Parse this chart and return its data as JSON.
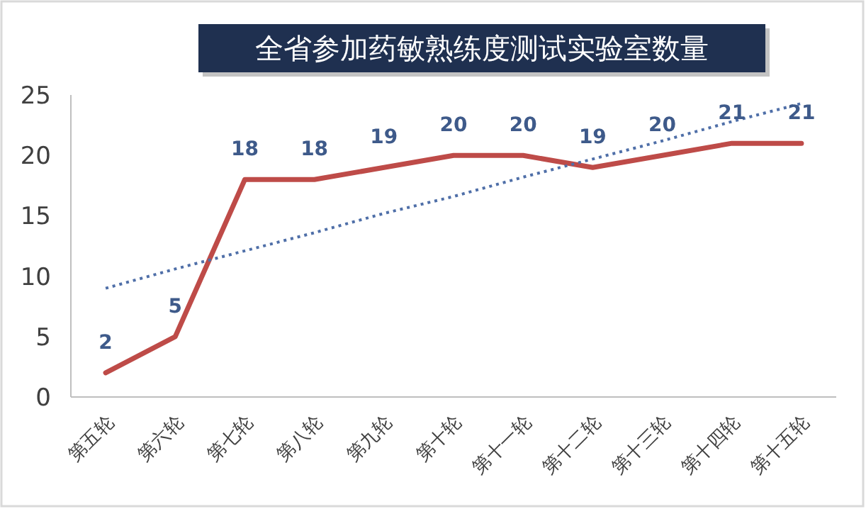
{
  "chart_data": {
    "type": "line",
    "title": "全省参加药敏熟练度测试实验室数量",
    "categories": [
      "第五轮",
      "第六轮",
      "第七轮",
      "第八轮",
      "第九轮",
      "第十轮",
      "第十一轮",
      "第十二轮",
      "第十三轮",
      "第十四轮",
      "第十五轮"
    ],
    "ylim": [
      0,
      25
    ],
    "yticks": [
      0,
      5,
      10,
      15,
      20,
      25
    ],
    "grid": false,
    "series": [
      {
        "color": "#be4b48",
        "line_style": "solid",
        "values": [
          2,
          5,
          18,
          18,
          19,
          20,
          20,
          19,
          20,
          21,
          21
        ],
        "value_labels": [
          "2",
          "5",
          "18",
          "18",
          "19",
          "20",
          "20",
          "19",
          "20",
          "21",
          "21"
        ]
      },
      {
        "color": "#4f6fa8",
        "line_style": "dotted",
        "values": [
          9.0,
          10.6,
          12.1,
          13.6,
          15.2,
          16.6,
          18.2,
          19.7,
          21.2,
          22.8,
          24.3
        ]
      }
    ]
  }
}
